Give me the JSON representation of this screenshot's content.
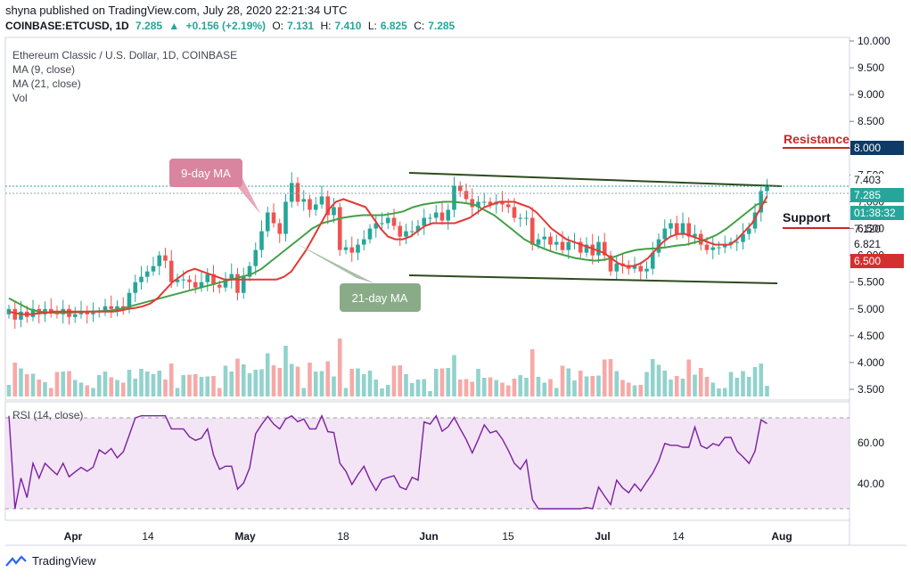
{
  "header": {
    "publisher_line": "shyna published on TradingView.com, July 28, 2020 22:21:34 UTC",
    "symbol": "COINBASE:ETCUSD, 1D",
    "last": "7.285",
    "change": "+0.156 (+2.19%)",
    "open_label": "O:",
    "open": "7.131",
    "high_label": "H:",
    "high": "7.410",
    "low_label": "L:",
    "low": "6.825",
    "close_label": "C:",
    "close": "7.285"
  },
  "legend": {
    "title": "Ethereum Classic / U.S. Dollar, 1D, COINBASE",
    "ma9": "MA (9, close)",
    "ma21": "MA (21, close)",
    "vol": "Vol"
  },
  "rsi_label": "RSI (14, close)",
  "annotations": {
    "ma9_callout": "9-day MA",
    "ma21_callout": "21-day MA",
    "resistance": "Resistance",
    "support": "Support"
  },
  "price_tags": {
    "t1": "7.403",
    "t2": "7.285",
    "t3": "01:38:32",
    "t4": "7.120",
    "t5": "6.821",
    "t6": "6.500",
    "t7": "8.000"
  },
  "footer": {
    "brand": "TradingView"
  },
  "colors": {
    "up": "#26a69a",
    "down": "#ef5350",
    "ma9": "#e53935",
    "ma21": "#43a047",
    "channel": "#2e4a1e",
    "rsi": "#7b1fa2",
    "rsi_band": "#f3e5f5",
    "resistance": "#c62828",
    "support": "#c62828"
  },
  "chart_data": {
    "type": "candlestick",
    "title": "Ethereum Classic / U.S. Dollar, 1D, COINBASE",
    "x_ticks": [
      "Apr",
      "14",
      "May",
      "18",
      "Jun",
      "15",
      "Jul",
      "14",
      "Aug"
    ],
    "y_ticks": [
      "10.000",
      "9.500",
      "9.000",
      "8.500",
      "8.000",
      "7.500",
      "7.000",
      "6.500",
      "6.000",
      "5.500",
      "5.000",
      "4.500",
      "4.000",
      "3.500"
    ],
    "ylim": [
      3.4,
      10.0
    ],
    "rsi_ticks": [
      "60.00",
      "40.00"
    ],
    "rsi_ylim": [
      25,
      78
    ],
    "closes": [
      5.0,
      4.8,
      4.95,
      4.85,
      5.0,
      4.9,
      5.0,
      4.95,
      4.9,
      5.0,
      4.85,
      4.9,
      4.95,
      4.9,
      4.95,
      4.95,
      5.05,
      5.0,
      5.05,
      5.0,
      5.3,
      5.5,
      5.6,
      5.7,
      5.8,
      6.0,
      5.9,
      5.5,
      5.55,
      5.55,
      5.5,
      5.4,
      5.5,
      5.65,
      5.45,
      5.4,
      5.55,
      5.65,
      5.3,
      5.6,
      5.8,
      6.1,
      6.45,
      6.8,
      6.6,
      6.4,
      7.0,
      7.35,
      7.0,
      7.05,
      6.85,
      6.95,
      7.1,
      6.75,
      6.9,
      6.1,
      6.15,
      6.05,
      6.2,
      6.3,
      6.5,
      6.6,
      6.6,
      6.7,
      6.55,
      6.35,
      6.45,
      6.45,
      6.55,
      6.7,
      6.7,
      6.8,
      6.65,
      6.85,
      7.3,
      7.2,
      7.05,
      6.9,
      7.0,
      7.0,
      6.95,
      7.0,
      6.95,
      6.9,
      6.7,
      6.7,
      6.7,
      6.2,
      6.3,
      6.35,
      6.2,
      6.25,
      6.1,
      6.25,
      6.25,
      6.05,
      6.2,
      6.0,
      6.25,
      6.0,
      5.7,
      5.85,
      5.8,
      5.75,
      5.8,
      5.7,
      5.75,
      6.05,
      6.3,
      6.5,
      6.6,
      6.4,
      6.6,
      6.35,
      6.4,
      6.2,
      6.1,
      6.15,
      6.15,
      6.2,
      6.25,
      6.25,
      6.4,
      6.5,
      6.8,
      7.2,
      7.285
    ],
    "ma9": [
      4.95,
      4.92,
      4.9,
      4.9,
      4.92,
      4.93,
      4.95,
      4.95,
      4.95,
      4.95,
      4.95,
      4.95,
      4.95,
      4.95,
      4.95,
      4.97,
      5.0,
      5.02,
      5.05,
      5.1,
      5.2,
      5.35,
      5.5,
      5.6,
      5.7,
      5.75,
      5.7,
      5.65,
      5.6,
      5.55,
      5.55,
      5.55,
      5.55,
      5.55,
      5.55,
      5.55,
      5.55,
      5.6,
      5.7,
      5.9,
      6.1,
      6.35,
      6.6,
      6.85,
      7.0,
      7.05,
      7.0,
      6.95,
      6.9,
      6.7,
      6.5,
      6.35,
      6.3,
      6.3,
      6.35,
      6.45,
      6.55,
      6.6,
      6.6,
      6.6,
      6.6,
      6.65,
      6.7,
      6.8,
      6.9,
      6.95,
      7.0,
      7.0,
      7.0,
      6.95,
      6.9,
      6.8,
      6.65,
      6.5,
      6.4,
      6.3,
      6.25,
      6.2,
      6.15,
      6.1,
      6.05,
      5.95,
      5.85,
      5.8,
      5.8,
      5.85,
      5.95,
      6.1,
      6.25,
      6.35,
      6.4,
      6.4,
      6.35,
      6.3,
      6.25,
      6.2,
      6.2,
      6.2,
      6.3,
      6.45,
      6.6,
      6.85,
      7.1
    ],
    "ma21": [
      5.2,
      5.1,
      5.0,
      4.95,
      4.93,
      4.93,
      4.93,
      4.94,
      4.95,
      4.96,
      4.97,
      5.0,
      5.05,
      5.1,
      5.15,
      5.2,
      5.25,
      5.3,
      5.35,
      5.4,
      5.45,
      5.5,
      5.55,
      5.6,
      5.65,
      5.75,
      5.9,
      6.05,
      6.2,
      6.35,
      6.5,
      6.6,
      6.65,
      6.7,
      6.73,
      6.75,
      6.75,
      6.75,
      6.78,
      6.82,
      6.9,
      6.95,
      6.98,
      7.0,
      7.0,
      6.98,
      6.95,
      6.85,
      6.75,
      6.6,
      6.45,
      6.3,
      6.2,
      6.12,
      6.05,
      6.0,
      5.95,
      5.92,
      5.9,
      5.92,
      5.98,
      6.05,
      6.1,
      6.12,
      6.13,
      6.15,
      6.18,
      6.2,
      6.25,
      6.3,
      6.38,
      6.5,
      6.65,
      6.8,
      6.95,
      7.0
    ]
  }
}
